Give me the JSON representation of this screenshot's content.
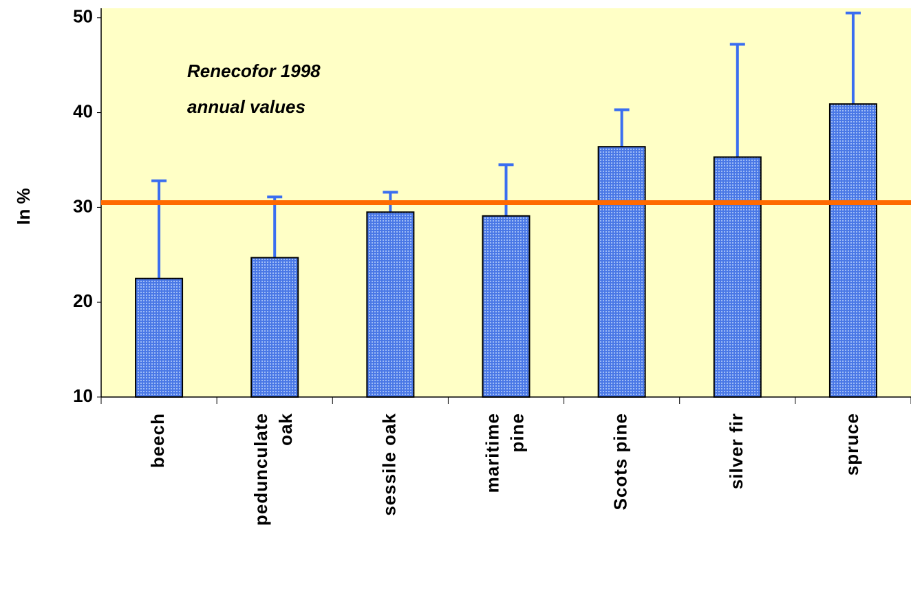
{
  "chart_data": {
    "type": "bar",
    "annotation": [
      "Renecofor 1998",
      "annual values"
    ],
    "y_label": "In %",
    "categories": [
      "beech",
      "pedunculate\noak",
      "sessile oak",
      "maritime\npine",
      "Scots pine",
      "silver fir",
      "spruce"
    ],
    "values": [
      22.5,
      24.7,
      29.5,
      29.1,
      36.4,
      35.3,
      40.9
    ],
    "errors": [
      10.3,
      6.4,
      2.1,
      5.4,
      3.9,
      11.9,
      9.6
    ],
    "color": "#4a78e6",
    "error_color": "#3a6ef0",
    "reference_line": 30.5,
    "reference_color": "#ff6a00",
    "background": "#ffffc6",
    "ylim": [
      10,
      51
    ],
    "yticks": [
      10,
      20,
      30,
      40,
      50
    ],
    "grid": false
  }
}
